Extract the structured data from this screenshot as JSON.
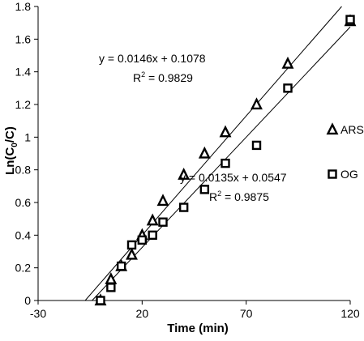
{
  "chart_data": {
    "type": "scatter",
    "title": "",
    "xlabel": "Time (min)",
    "ylabel_parts": {
      "prefix": "Ln(C",
      "sub": "0",
      "suffix": "/C)"
    },
    "xlim": [
      -30,
      120
    ],
    "ylim": [
      0,
      1.8
    ],
    "xticks": [
      "-30",
      "20",
      "70",
      "120"
    ],
    "yticks": [
      "0",
      "0.2",
      "0.4",
      "0.6",
      "0.8",
      "1",
      "1.2",
      "1.4",
      "1.6",
      "1.8"
    ],
    "grid": false,
    "legend_position": "right",
    "series": [
      {
        "name": "ARS",
        "marker": "triangle",
        "x": [
          0,
          5,
          10,
          15,
          20,
          25,
          30,
          40,
          50,
          60,
          75,
          90,
          120
        ],
        "y": [
          0,
          0.13,
          0.21,
          0.28,
          0.4,
          0.49,
          0.61,
          0.77,
          0.9,
          1.03,
          1.2,
          1.45,
          1.71
        ],
        "trendline": {
          "slope": 0.0146,
          "intercept": 0.1078,
          "equation": "y = 0.0146x + 0.1078",
          "r2_prefix": "R",
          "r2_exp": "2",
          "r2_suffix": " = 0.9829"
        }
      },
      {
        "name": "OG",
        "marker": "square",
        "x": [
          0,
          5,
          10,
          15,
          20,
          25,
          30,
          40,
          50,
          60,
          75,
          90,
          120
        ],
        "y": [
          0,
          0.08,
          0.21,
          0.34,
          0.37,
          0.4,
          0.48,
          0.57,
          0.68,
          0.84,
          0.95,
          1.3,
          1.72
        ],
        "trendline": {
          "slope": 0.0135,
          "intercept": 0.0547,
          "equation": "y = 0.0135x + 0.0547",
          "r2_prefix": "R",
          "r2_exp": "2",
          "r2_suffix": " = 0.9875"
        }
      }
    ]
  }
}
